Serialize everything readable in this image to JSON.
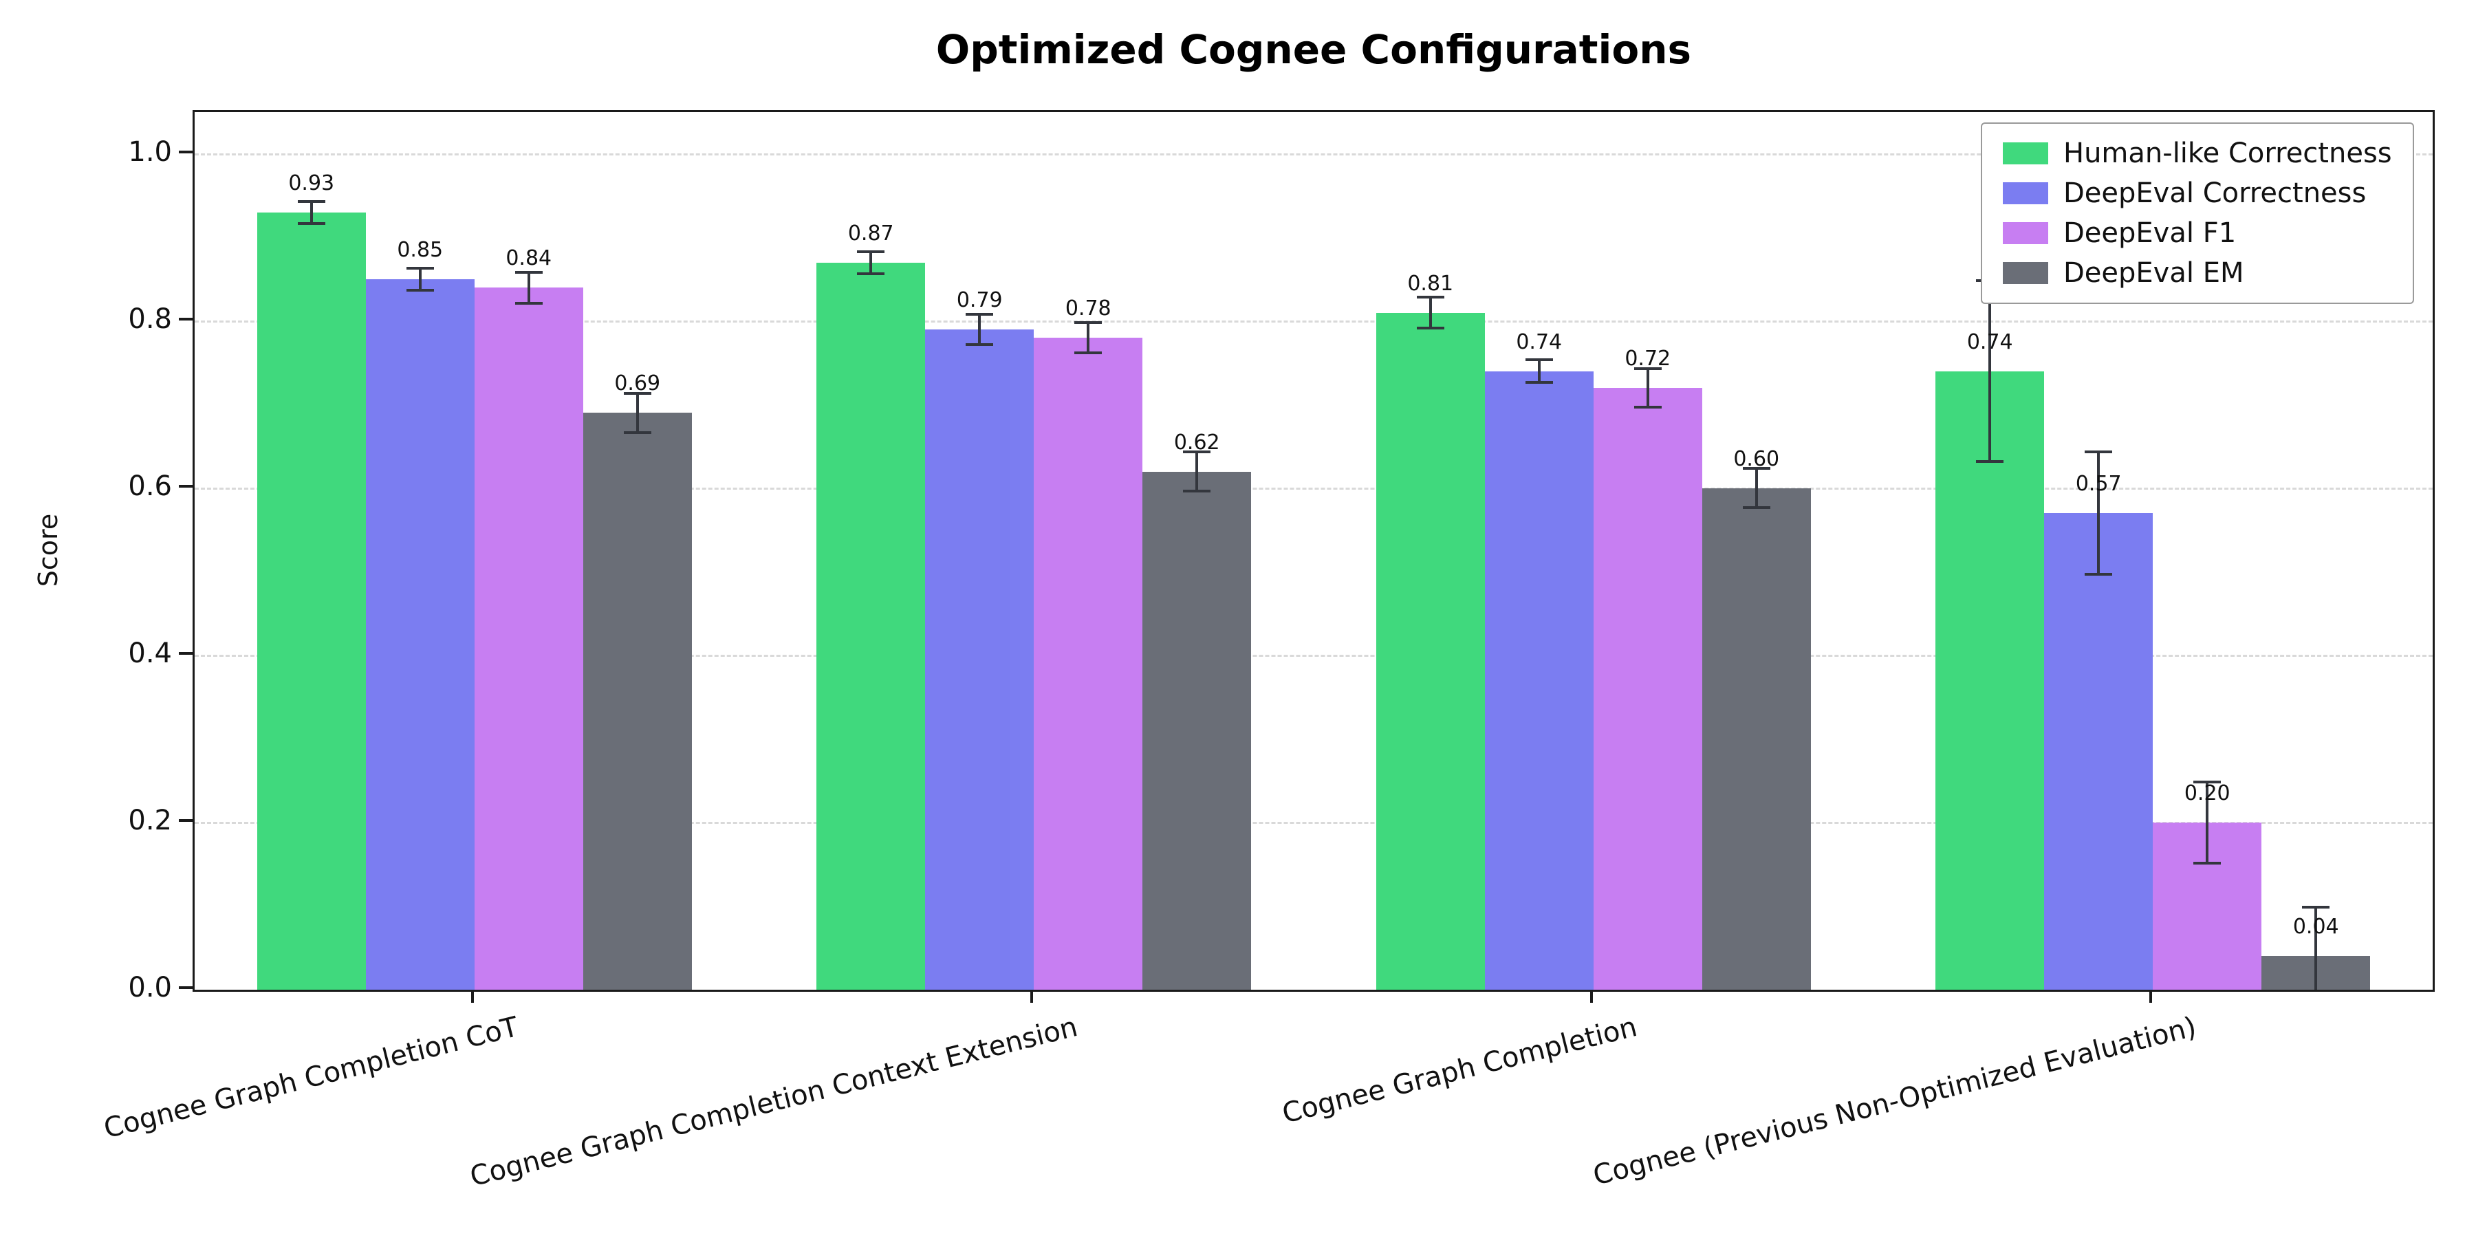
{
  "chart_data": {
    "type": "bar",
    "title": "Optimized Cognee Configurations",
    "xlabel": "",
    "ylabel": "Score",
    "ylim": [
      0,
      1.05
    ],
    "yticks": [
      0.0,
      0.2,
      0.4,
      0.6,
      0.8,
      1.0
    ],
    "grid": "horizontal-dashed",
    "legend_position": "upper right",
    "error_bars": true,
    "categories": [
      "Cognee Graph Completion CoT",
      "Cognee Graph Completion Context Extension",
      "Cognee Graph Completion",
      "Cognee (Previous Non-Optimized Evaluation)"
    ],
    "series": [
      {
        "name": "Human-like Correctness",
        "color": "#40d97d",
        "values": [
          0.93,
          0.87,
          0.81,
          0.74
        ],
        "errors": [
          0.015,
          0.015,
          0.02,
          0.11
        ]
      },
      {
        "name": "DeepEval Correctness",
        "color": "#7b7df1",
        "values": [
          0.85,
          0.79,
          0.74,
          0.57
        ],
        "errors": [
          0.015,
          0.02,
          0.015,
          0.075
        ]
      },
      {
        "name": "DeepEval F1",
        "color": "#c77ef2",
        "values": [
          0.84,
          0.78,
          0.72,
          0.2
        ],
        "errors": [
          0.02,
          0.02,
          0.025,
          0.05
        ]
      },
      {
        "name": "DeepEval EM",
        "color": "#6a6e77",
        "values": [
          0.69,
          0.62,
          0.6,
          0.04
        ],
        "errors": [
          0.025,
          0.025,
          0.025,
          0.06
        ]
      }
    ]
  }
}
